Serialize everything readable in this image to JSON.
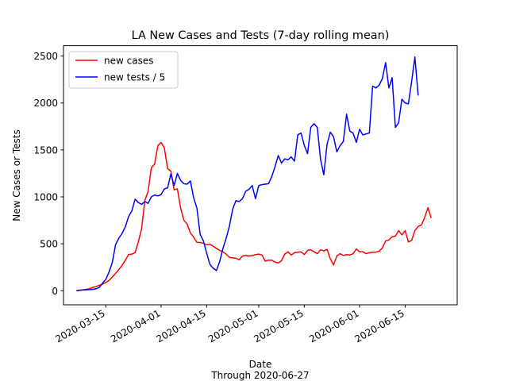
{
  "chart_data": {
    "type": "line",
    "title": "LA New Cases and Tests (7-day rolling mean)",
    "xlabel": "Date",
    "xlabel_sub": "Through 2020-06-27",
    "ylabel": "New Cases or Tests",
    "x_start": "2020-03-06",
    "x_end": "2020-06-27",
    "xlim": [
      "2020-03-02",
      "2020-07-01"
    ],
    "ylim": [
      -150,
      2610
    ],
    "x_ticks": [
      "2020-03-15",
      "2020-04-01",
      "2020-04-15",
      "2020-05-01",
      "2020-05-15",
      "2020-06-01",
      "2020-06-15"
    ],
    "y_ticks": [
      0,
      500,
      1000,
      1500,
      2000,
      2500
    ],
    "grid": false,
    "legend_position": "top-left",
    "series": [
      {
        "name": "new cases",
        "color": "#ff0000",
        "values": [
          0,
          5,
          10,
          15,
          22,
          35,
          45,
          58,
          70,
          88,
          110,
          145,
          185,
          225,
          270,
          325,
          385,
          390,
          405,
          520,
          660,
          960,
          1060,
          1310,
          1350,
          1545,
          1580,
          1520,
          1300,
          1275,
          1075,
          1085,
          880,
          750,
          710,
          615,
          570,
          515,
          515,
          505,
          490,
          495,
          475,
          450,
          430,
          415,
          390,
          355,
          350,
          345,
          330,
          370,
          375,
          370,
          375,
          385,
          390,
          380,
          315,
          325,
          325,
          305,
          295,
          320,
          390,
          415,
          380,
          405,
          410,
          415,
          385,
          430,
          435,
          415,
          395,
          435,
          425,
          440,
          340,
          275,
          370,
          395,
          375,
          385,
          380,
          395,
          445,
          415,
          415,
          395,
          405,
          410,
          410,
          420,
          455,
          530,
          540,
          575,
          580,
          640,
          595,
          640,
          520,
          535,
          640,
          685,
          700,
          780,
          885,
          775
        ]
      },
      {
        "name": "new tests / 5",
        "color": "#0000ff",
        "values": [
          0,
          5,
          8,
          10,
          12,
          15,
          20,
          35,
          80,
          120,
          200,
          300,
          490,
          560,
          610,
          680,
          790,
          850,
          975,
          940,
          920,
          950,
          930,
          1000,
          1020,
          1010,
          1025,
          1085,
          1095,
          1245,
          1120,
          1250,
          1175,
          1140,
          1135,
          1170,
          990,
          880,
          600,
          530,
          400,
          280,
          240,
          215,
          310,
          450,
          560,
          690,
          870,
          960,
          950,
          980,
          1060,
          1080,
          1120,
          980,
          1120,
          1130,
          1135,
          1140,
          1215,
          1320,
          1440,
          1360,
          1405,
          1395,
          1425,
          1380,
          1660,
          1680,
          1550,
          1460,
          1740,
          1780,
          1740,
          1400,
          1235,
          1560,
          1690,
          1640,
          1480,
          1545,
          1590,
          1880,
          1700,
          1680,
          1580,
          1720,
          1660,
          1670,
          1680,
          2180,
          2160,
          2190,
          2260,
          2430,
          2160,
          2270,
          1740,
          1790,
          2040,
          2000,
          1990,
          2230,
          2490,
          2080
        ]
      }
    ]
  }
}
